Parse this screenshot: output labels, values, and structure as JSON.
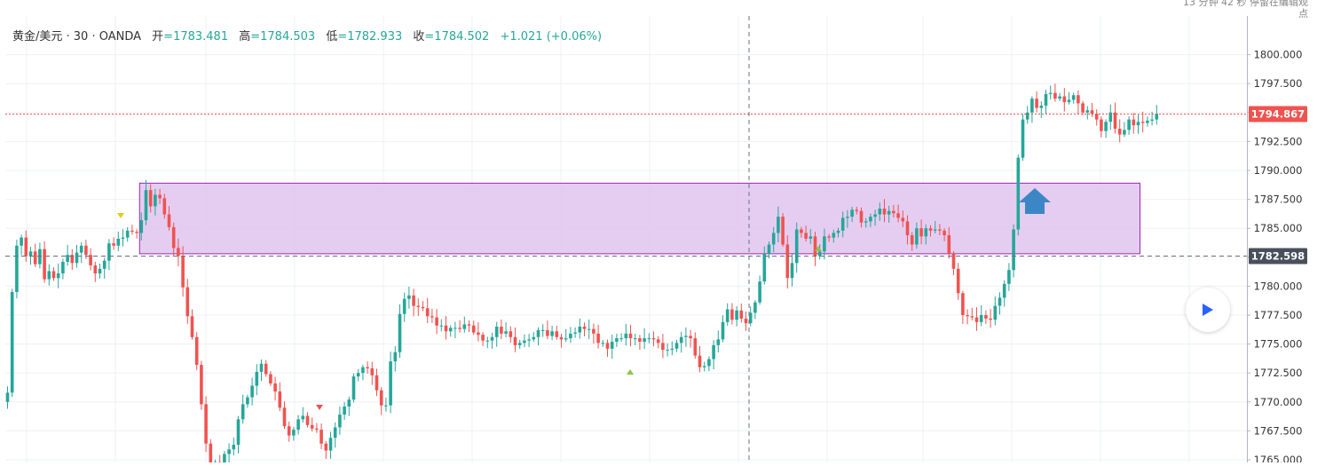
{
  "legend": {
    "symbol": "黄金/美元 · 30 · OANDA",
    "open_label": "开",
    "open": "=1783.481",
    "high_label": "高",
    "high": "=1784.503",
    "low_label": "低",
    "low": "=1782.933",
    "close_label": "收",
    "close": "=1784.502",
    "change": "+1.021 (+0.06%)"
  },
  "top_note": {
    "line1": "13 分钟 42 秒 停留在编辑观",
    "line2": "点"
  },
  "colors": {
    "up": "#26a69a",
    "down": "#ef5350",
    "zone_fill": "#e1c4ee",
    "zone_border": "#9c27b0",
    "arrow": "#3d86c6"
  },
  "chart_data": {
    "type": "candlestick",
    "symbol": "黄金/美元",
    "interval": "30",
    "source": "OANDA",
    "y_ticks": [
      "1765.000",
      "1767.500",
      "1770.000",
      "1772.500",
      "1775.000",
      "1777.500",
      "1780.000",
      "1782.500",
      "1785.000",
      "1787.500",
      "1790.000",
      "1792.500",
      "1795.000",
      "1797.500",
      "1800.000"
    ],
    "ylim": [
      1764.0,
      1801.5
    ],
    "current_price_label": "1794.867",
    "crosshair_price_label": "1782.598",
    "zone": {
      "y_low": 1782.8,
      "y_high": 1788.9,
      "x_start_bar": 29,
      "x_end_bar": 245
    },
    "closes": [
      1770.8,
      1779.5,
      1783.5,
      1784.2,
      1782.6,
      1783.0,
      1781.9,
      1783.2,
      1780.6,
      1781.3,
      1780.7,
      1781.1,
      1782.1,
      1782.7,
      1782.0,
      1782.9,
      1783.5,
      1782.7,
      1781.8,
      1781.1,
      1781.5,
      1782.2,
      1783.7,
      1783.5,
      1784.1,
      1784.2,
      1784.8,
      1784.7,
      1784.6,
      1785.7,
      1788.3,
      1786.9,
      1787.9,
      1787.6,
      1786.2,
      1785.1,
      1783.3,
      1782.6,
      1779.9,
      1777.4,
      1775.6,
      1773.2,
      1769.8,
      1766.4,
      1763.8,
      1764.8,
      1764.7,
      1765.5,
      1765.9,
      1766.3,
      1768.5,
      1769.8,
      1770.4,
      1771.4,
      1772.6,
      1773.3,
      1772.4,
      1771.6,
      1770.9,
      1769.5,
      1767.9,
      1767.1,
      1767.6,
      1768.5,
      1768.8,
      1768.0,
      1767.7,
      1767.6,
      1766.4,
      1765.8,
      1766.9,
      1767.8,
      1768.9,
      1769.6,
      1770.2,
      1772.2,
      1772.5,
      1773.0,
      1772.9,
      1772.3,
      1771.0,
      1769.7,
      1769.7,
      1773.5,
      1774.3,
      1777.6,
      1778.9,
      1779.2,
      1778.3,
      1778.2,
      1778.1,
      1777.4,
      1777.3,
      1776.6,
      1776.6,
      1776.1,
      1776.4,
      1776.4,
      1776.3,
      1776.7,
      1776.6,
      1776.0,
      1775.8,
      1775.3,
      1775.3,
      1775.6,
      1776.5,
      1775.9,
      1776.1,
      1775.6,
      1774.9,
      1775.1,
      1775.3,
      1775.4,
      1775.6,
      1776.2,
      1776.2,
      1775.7,
      1776.1,
      1775.6,
      1775.4,
      1775.5,
      1775.9,
      1776.0,
      1776.5,
      1776.3,
      1776.3,
      1775.9,
      1775.1,
      1775.1,
      1774.6,
      1775.2,
      1775.5,
      1775.5,
      1775.9,
      1775.5,
      1775.5,
      1775.2,
      1775.5,
      1775.5,
      1775.4,
      1775.1,
      1774.5,
      1774.5,
      1774.6,
      1775.1,
      1775.6,
      1775.7,
      1775.5,
      1774.0,
      1773.0,
      1773.1,
      1773.7,
      1774.9,
      1775.4,
      1776.9,
      1778.0,
      1777.1,
      1777.9,
      1777.2,
      1776.8,
      1777.7,
      1778.6,
      1780.4,
      1782.8,
      1783.6,
      1784.6,
      1786.0,
      1783.6,
      1780.7,
      1782.0,
      1784.9,
      1784.6,
      1784.1,
      1784.3,
      1782.6,
      1783.0,
      1784.3,
      1784.2,
      1784.6,
      1784.8,
      1785.9,
      1786.0,
      1786.6,
      1786.5,
      1785.5,
      1785.6,
      1786.0,
      1786.2,
      1786.7,
      1786.2,
      1786.5,
      1786.3,
      1785.9,
      1785.6,
      1784.4,
      1783.6,
      1785.0,
      1784.3,
      1785.0,
      1784.8,
      1784.9,
      1784.8,
      1784.4,
      1782.8,
      1781.5,
      1779.4,
      1777.5,
      1777.4,
      1777.3,
      1776.9,
      1777.5,
      1777.2,
      1777.1,
      1778.3,
      1779.0,
      1780.2,
      1781.4,
      1784.9,
      1791.1,
      1794.4,
      1795.0,
      1796.2,
      1795.4,
      1795.6,
      1796.6,
      1796.7,
      1796.2,
      1796.4,
      1795.9,
      1796.1,
      1796.5,
      1795.8,
      1795.0,
      1795.2,
      1794.9,
      1794.4,
      1793.4,
      1794.2,
      1795.0,
      1793.6,
      1793.1,
      1793.5,
      1794.4,
      1793.9,
      1794.2,
      1794.1,
      1794.3,
      1794.4,
      1794.9
    ]
  }
}
